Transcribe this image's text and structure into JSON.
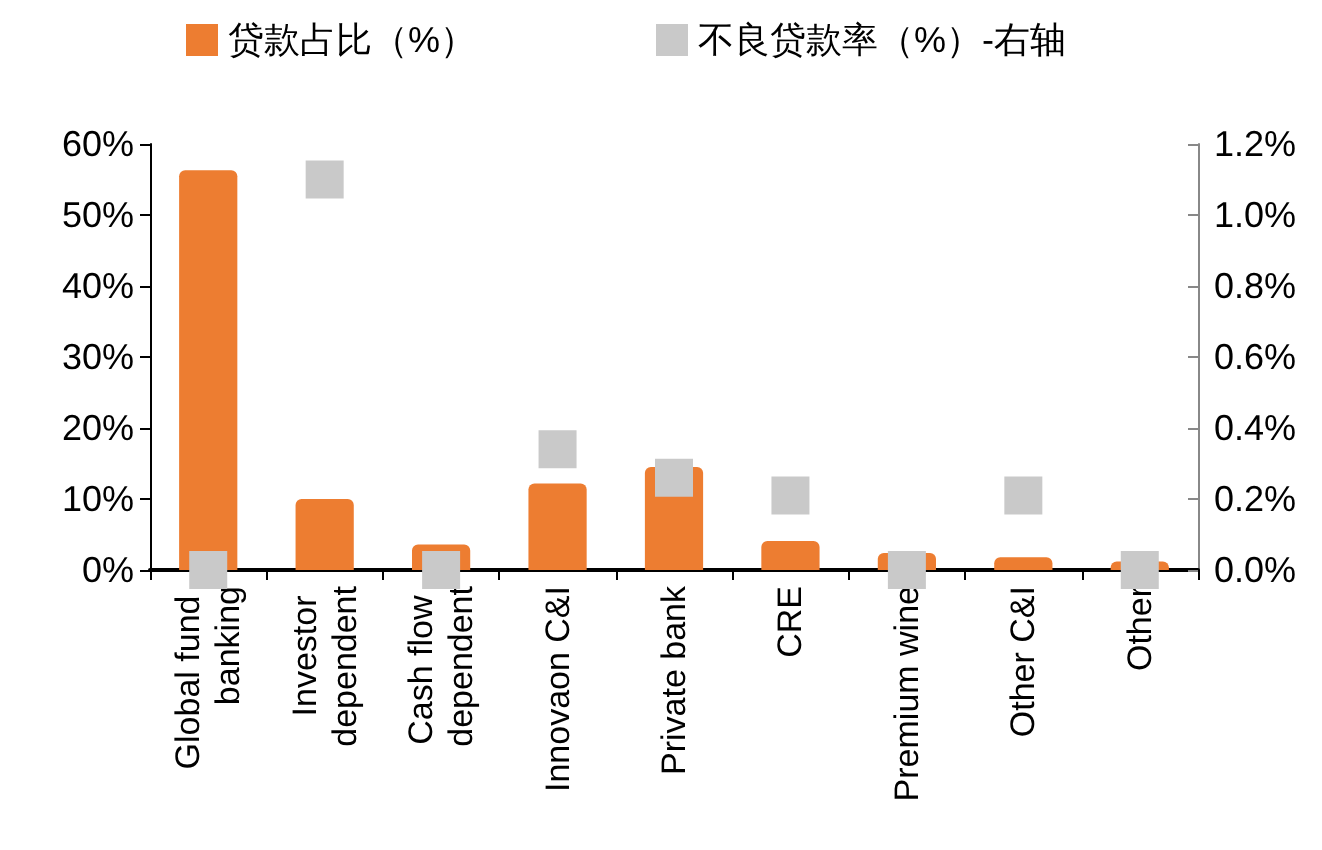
{
  "chart_data": {
    "type": "bar",
    "categories": [
      "Global fund banking",
      "Investor dependent",
      "Cash flow dependent",
      "Innovaon C&I",
      "Private bank",
      "CRE",
      "Premium wine",
      "Other C&I",
      "Other"
    ],
    "series": [
      {
        "name": "贷款占比（%）",
        "color": "#ed7d31",
        "values": [
          56.3,
          10,
          3.6,
          12.2,
          14.5,
          4.1,
          2.4,
          1.8,
          1.2
        ]
      },
      {
        "name": "不良贷款率（%）-右轴",
        "type": "scatter",
        "axis": "y2",
        "marker": "square",
        "color": "#c9c9c9",
        "values": [
          0,
          1.1,
          0,
          0.34,
          0.26,
          0.21,
          0,
          0.21,
          0
        ]
      }
    ],
    "ylim": [
      0,
      60
    ],
    "yticks": [
      {
        "value": 0,
        "label": "0%"
      },
      {
        "value": 10,
        "label": "10%"
      },
      {
        "value": 20,
        "label": "20%"
      },
      {
        "value": 30,
        "label": "30%"
      },
      {
        "value": 40,
        "label": "40%"
      },
      {
        "value": 50,
        "label": "50%"
      },
      {
        "value": 60,
        "label": "60%"
      }
    ],
    "y2lim": [
      0,
      1.2
    ],
    "y2ticks": [
      {
        "value": 0,
        "label": "0.0%"
      },
      {
        "value": 0.2,
        "label": "0.2%"
      },
      {
        "value": 0.4,
        "label": "0.4%"
      },
      {
        "value": 0.6,
        "label": "0.6%"
      },
      {
        "value": 0.8,
        "label": "0.8%"
      },
      {
        "value": 1.0,
        "label": "1.0%"
      },
      {
        "value": 1.2,
        "label": "1.2%"
      }
    ],
    "grid": false,
    "legend": "top left"
  }
}
